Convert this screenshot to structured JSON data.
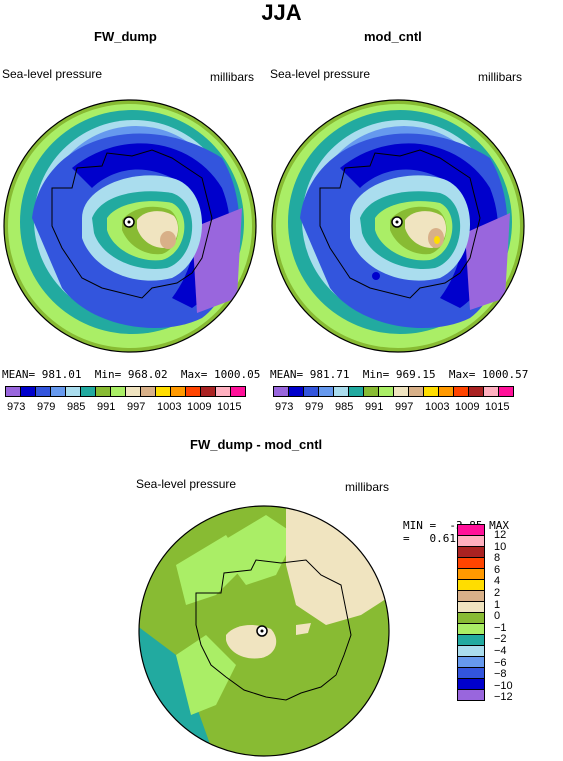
{
  "title": "JJA",
  "panels": {
    "left": {
      "title": "FW_dump",
      "variable": "Sea-level pressure",
      "units": "millibars",
      "mean_label": "MEAN=",
      "mean": "981.01",
      "min_label": "Min=",
      "min": "968.02",
      "max_label": "Max=",
      "max": "1000.05"
    },
    "right": {
      "title": "mod_cntl",
      "variable": "Sea-level pressure",
      "units": "millibars",
      "mean_label": "MEAN=",
      "mean": "981.71",
      "min_label": "Min=",
      "min": "969.15",
      "max_label": "Max=",
      "max": "1000.57"
    },
    "diff": {
      "title": "FW_dump - mod_cntl",
      "variable": "Sea-level pressure",
      "units": "millibars",
      "min_label": "MIN =",
      "min": "-3.85",
      "max_label": "MAX =",
      "max": "0.61"
    }
  },
  "colorbar_top": {
    "colors": [
      "#9966dd",
      "#0000cc",
      "#3355dd",
      "#6699ee",
      "#aaddee",
      "#22aaa0",
      "#88bb33",
      "#aaee66",
      "#f0e4c0",
      "#d8b088",
      "#ffdd00",
      "#ff9900",
      "#ff4400",
      "#aa2222",
      "#ffb0c0",
      "#ff1199"
    ],
    "labels": [
      "973",
      "979",
      "985",
      "991",
      "997",
      "1003",
      "1009",
      "1015"
    ]
  },
  "colorbar_diff": {
    "colors": [
      "#ff1199",
      "#ffb0c0",
      "#aa2222",
      "#ff4400",
      "#ff9900",
      "#ffdd00",
      "#d8b088",
      "#f0e4c0",
      "#88bb33",
      "#aaee66",
      "#22aaa0",
      "#aaddee",
      "#6699ee",
      "#3355dd",
      "#0000cc",
      "#9966dd"
    ],
    "labels": [
      "12",
      "10",
      "8",
      "6",
      "4",
      "2",
      "1",
      "0",
      "−1",
      "−2",
      "−4",
      "−6",
      "−8",
      "−10",
      "−12"
    ]
  }
}
